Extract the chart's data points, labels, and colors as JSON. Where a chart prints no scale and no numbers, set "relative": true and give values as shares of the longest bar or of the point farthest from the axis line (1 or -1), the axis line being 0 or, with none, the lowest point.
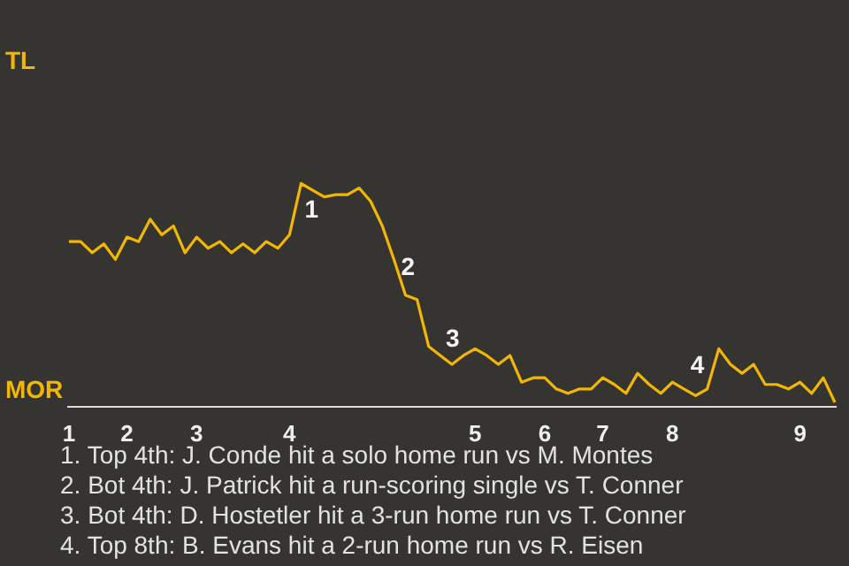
{
  "chart_data": {
    "type": "line",
    "categories": [
      "1",
      null,
      null,
      null,
      null,
      "2",
      null,
      null,
      null,
      null,
      null,
      "3",
      null,
      null,
      null,
      null,
      null,
      null,
      null,
      "4",
      null,
      null,
      null,
      null,
      null,
      null,
      null,
      null,
      null,
      null,
      null,
      null,
      null,
      null,
      null,
      "5",
      null,
      null,
      null,
      null,
      null,
      "6",
      null,
      null,
      null,
      null,
      "7",
      null,
      null,
      null,
      null,
      null,
      "8",
      null,
      null,
      null,
      null,
      null,
      null,
      null,
      null,
      null,
      null,
      "9",
      null,
      null,
      null
    ],
    "relative": true,
    "series": [
      {
        "color": "#f2b705",
        "values": [
          0.74,
          0.74,
          0.69,
          0.73,
          0.66,
          0.76,
          0.74,
          0.84,
          0.77,
          0.81,
          0.69,
          0.76,
          0.71,
          0.74,
          0.69,
          0.73,
          0.69,
          0.74,
          0.71,
          0.77,
          1.0,
          0.97,
          0.94,
          0.95,
          0.95,
          0.98,
          0.92,
          0.81,
          0.66,
          0.5,
          0.48,
          0.27,
          0.23,
          0.19,
          0.23,
          0.26,
          0.23,
          0.19,
          0.23,
          0.11,
          0.13,
          0.13,
          0.08,
          0.06,
          0.08,
          0.08,
          0.13,
          0.1,
          0.06,
          0.15,
          0.1,
          0.06,
          0.11,
          0.08,
          0.05,
          0.08,
          0.26,
          0.19,
          0.15,
          0.19,
          0.1,
          0.1,
          0.08,
          0.11,
          0.06,
          0.13,
          0.02
        ]
      }
    ],
    "marker": "none",
    "line_style": "solid",
    "annotations": [
      "TL",
      "MOR",
      "1",
      "2",
      "3",
      "4",
      "1. Top 4th: J. Conde hit a solo home run vs M. Montes",
      "2. Bot 4th: J. Patrick hit a run-scoring single vs T. Conner",
      "3. Bot 4th: D. Hostetler hit a 3-run home run vs T. Conner",
      "4. Top 8th: B. Evans hit a 2-run home run vs R. Eisen"
    ]
  }
}
